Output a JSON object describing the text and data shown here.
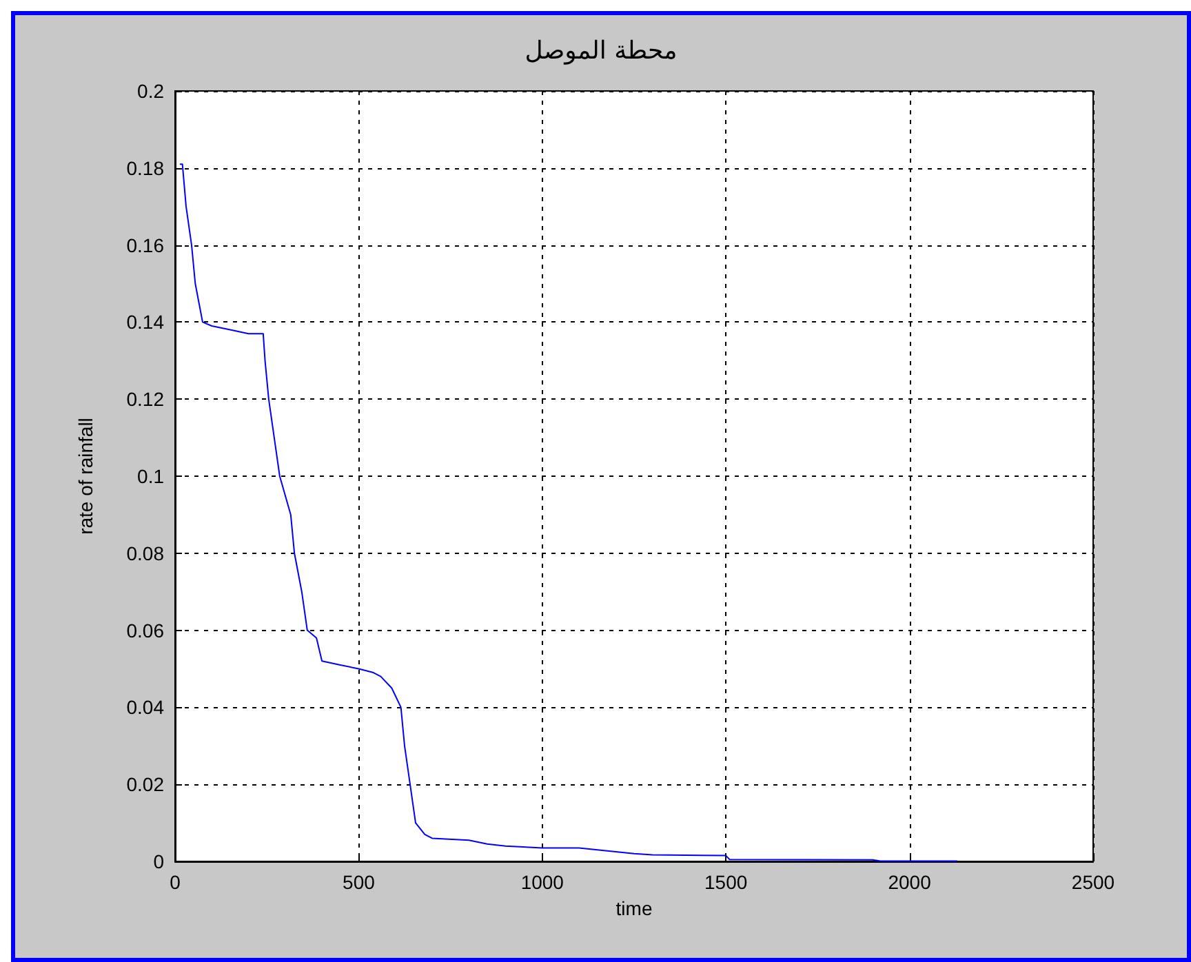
{
  "chart_data": {
    "type": "line",
    "title": "محطة الموصل",
    "xlabel": "time",
    "ylabel": "rate of rainfall",
    "series": [
      {
        "color": "#0000ff",
        "x": [
          13,
          20,
          30,
          45,
          55,
          65,
          75,
          100,
          150,
          200,
          240,
          245,
          255,
          270,
          285,
          300,
          315,
          325,
          345,
          360,
          385,
          400,
          450,
          500,
          540,
          560,
          590,
          615,
          625,
          640,
          655,
          680,
          700,
          800,
          850,
          900,
          1000,
          1100,
          1150,
          1250,
          1300,
          1500,
          1510,
          1900,
          1920,
          2130
        ],
        "values": [
          0.181,
          0.181,
          0.17,
          0.16,
          0.15,
          0.145,
          0.14,
          0.139,
          0.138,
          0.137,
          0.137,
          0.13,
          0.12,
          0.11,
          0.1,
          0.095,
          0.09,
          0.08,
          0.07,
          0.06,
          0.058,
          0.052,
          0.051,
          0.05,
          0.049,
          0.048,
          0.045,
          0.04,
          0.03,
          0.02,
          0.01,
          0.007,
          0.006,
          0.0055,
          0.0045,
          0.004,
          0.0035,
          0.0035,
          0.003,
          0.002,
          0.0017,
          0.0015,
          0.0005,
          0.0004,
          0.0001,
          0.0001
        ]
      }
    ],
    "xlim": [
      0,
      2500
    ],
    "xticks": [
      0,
      500,
      1000,
      1500,
      2000,
      2500
    ],
    "ylim": [
      0,
      0.2
    ],
    "yticks": [
      0,
      0.02,
      0.04,
      0.06,
      0.08,
      0.1,
      0.12,
      0.14,
      0.16,
      0.18,
      0.2
    ],
    "grid": true,
    "line_style": "solid",
    "marker": "none"
  }
}
